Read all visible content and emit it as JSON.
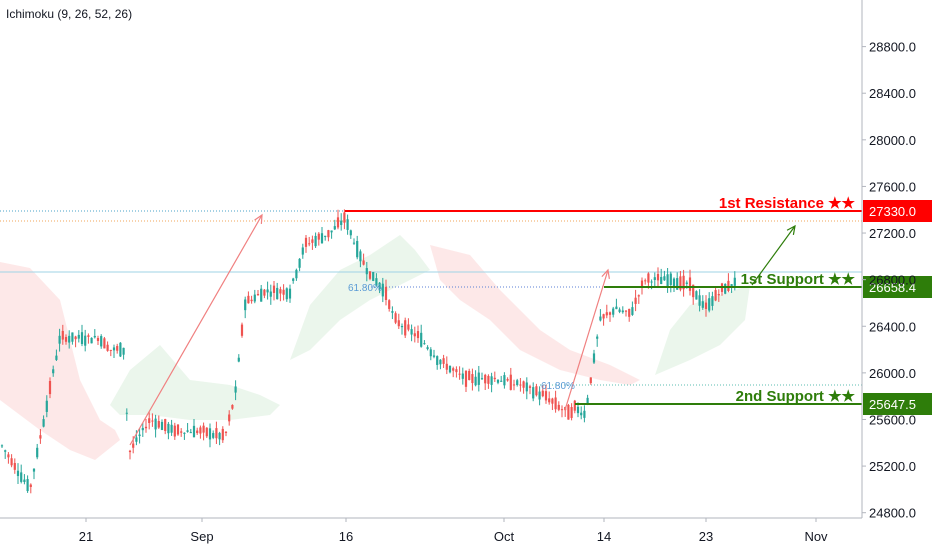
{
  "indicator": {
    "label": "Ichimoku (9, 26, 52, 26)"
  },
  "colors": {
    "up": "#26a69a",
    "down": "#ef5350",
    "resistance": "#ff0000",
    "support": "#2e7d0a",
    "cloud_bull": "#e8f5e9",
    "cloud_bear": "#fde4e4",
    "arrow_up": "#f08080",
    "arrow_green": "#2e7d0a",
    "fib": "#5b9bd5"
  },
  "chart_data": {
    "type": "candlestick",
    "ylim": [
      24600,
      29200
    ],
    "y_ticks": [
      "28800.0",
      "28400.0",
      "28000.0",
      "27600.0",
      "27200.0",
      "26800.0",
      "26400.0",
      "26000.0",
      "25600.0",
      "25200.0",
      "24800.0"
    ],
    "x_ticks": [
      "21",
      "Sep",
      "16",
      "Oct",
      "14",
      "23",
      "Nov"
    ],
    "price_path": [
      [
        0,
        25400
      ],
      [
        30,
        25000
      ],
      [
        45,
        25650
      ],
      [
        60,
        26300
      ],
      [
        100,
        26300
      ],
      [
        110,
        26200
      ],
      [
        125,
        26200
      ],
      [
        128,
        25300
      ],
      [
        150,
        25600
      ],
      [
        175,
        25500
      ],
      [
        200,
        25500
      ],
      [
        225,
        25450
      ],
      [
        235,
        25800
      ],
      [
        245,
        26600
      ],
      [
        265,
        26700
      ],
      [
        290,
        26700
      ],
      [
        305,
        27100
      ],
      [
        330,
        27200
      ],
      [
        345,
        27330
      ],
      [
        360,
        27000
      ],
      [
        370,
        26850
      ],
      [
        385,
        26700
      ],
      [
        395,
        26450
      ],
      [
        420,
        26300
      ],
      [
        440,
        26100
      ],
      [
        465,
        25950
      ],
      [
        495,
        25950
      ],
      [
        520,
        25900
      ],
      [
        545,
        25800
      ],
      [
        560,
        25700
      ],
      [
        570,
        25650
      ],
      [
        575,
        25700
      ],
      [
        585,
        25647
      ],
      [
        590,
        25900
      ],
      [
        600,
        26450
      ],
      [
        615,
        26550
      ],
      [
        630,
        26500
      ],
      [
        645,
        26800
      ],
      [
        670,
        26800
      ],
      [
        690,
        26750
      ],
      [
        705,
        26550
      ],
      [
        720,
        26700
      ],
      [
        735,
        26780
      ]
    ],
    "levels": [
      {
        "label": "1st Resistance ★★",
        "value": "27330.0",
        "kind": "resistance"
      },
      {
        "label": "1st Support ★★",
        "value": "26658.4",
        "kind": "support"
      },
      {
        "label": "2nd Support ★★",
        "value": "25647.5",
        "kind": "support"
      }
    ],
    "fib_labels": [
      "61.80%",
      "61.80%"
    ]
  }
}
